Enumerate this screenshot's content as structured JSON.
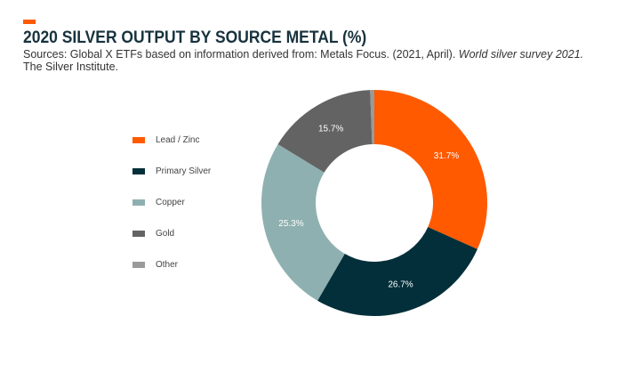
{
  "header": {
    "title": "2020 SILVER OUTPUT BY SOURCE METAL (%)",
    "source_prefix": "Sources: Global X ETFs based on information derived from: Metals Focus. (2021, April). ",
    "source_italic": "World silver survey 2021.",
    "source_suffix": " The Silver Institute.",
    "accent_color": "#ff5a00"
  },
  "chart_data": {
    "type": "pie",
    "variant": "donut",
    "categories": [
      "Lead / Zinc",
      "Primary Silver",
      "Copper",
      "Gold",
      "Other"
    ],
    "values": [
      31.7,
      26.7,
      25.3,
      15.7,
      0.6
    ],
    "labels": [
      "31.7%",
      "26.7%",
      "25.3%",
      "15.7%",
      ""
    ],
    "colors": [
      "#ff5a00",
      "#022f3a",
      "#8fb0b0",
      "#636363",
      "#9a9a9a"
    ],
    "legend_position": "left",
    "start_angle_deg": 0,
    "direction": "clockwise"
  }
}
